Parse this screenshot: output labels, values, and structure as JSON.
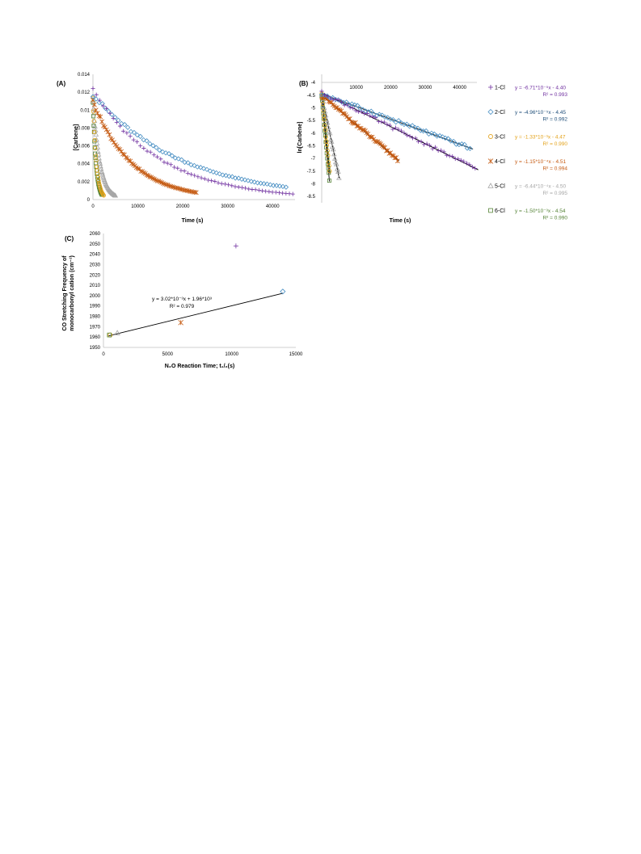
{
  "colors": {
    "1-Cl": "#7030a0",
    "2-Cl": "#4a90c4",
    "3-Cl": "#e3a21a",
    "4-Cl": "#c55a11",
    "5-Cl": "#a6a6a6",
    "6-Cl": "#548235",
    "fit": "#000000",
    "eq2": "#1f4e79"
  },
  "chart_data": [
    {
      "panel_label": "(A)",
      "type": "scatter",
      "xlabel": "Time (s)",
      "ylabel": "[Carbene]",
      "xlim": [
        0,
        45000
      ],
      "ylim": [
        0,
        0.014
      ],
      "x_ticks": [
        "0",
        "10000",
        "20000",
        "30000",
        "40000"
      ],
      "y_ticks": [
        "0",
        "0.002",
        "0.004",
        "0.006",
        "0.008",
        "0.01",
        "0.012",
        "0.014"
      ],
      "series": [
        {
          "name": "1-Cl",
          "marker": "plus",
          "a": 0.0123,
          "k": 6.71e-05,
          "xmax": 44500,
          "n": 60
        },
        {
          "name": "2-Cl",
          "marker": "diamond",
          "a": 0.0117,
          "k": 4.96e-05,
          "xmax": 43000,
          "n": 62
        },
        {
          "name": "3-Cl",
          "marker": "circle",
          "a": 0.0114,
          "k": 0.00133,
          "xmax": 2400,
          "n": 24
        },
        {
          "name": "4-Cl",
          "marker": "star",
          "a": 0.011,
          "k": 0.000115,
          "xmax": 23000,
          "n": 70
        },
        {
          "name": "5-Cl",
          "marker": "triangle",
          "a": 0.0111,
          "k": 0.000644,
          "xmax": 5000,
          "n": 45
        },
        {
          "name": "6-Cl",
          "marker": "square",
          "a": 0.0107,
          "k": 0.0015,
          "xmax": 2000,
          "n": 26
        }
      ]
    },
    {
      "panel_label": "(B)",
      "type": "scatter",
      "xlabel": "Time (s)",
      "ylabel": "ln[Carbene]",
      "xlim": [
        0,
        45000
      ],
      "ylim": [
        -8.5,
        -4
      ],
      "x_ticks": [
        "10000",
        "20000",
        "30000",
        "40000"
      ],
      "y_ticks": [
        "-4",
        "-4.5",
        "-5",
        "-5.5",
        "-6",
        "-6.5",
        "-7",
        "-7.5",
        "-8",
        "-8.5"
      ],
      "series": [
        {
          "name": "1-Cl",
          "marker": "plus",
          "slope": -6.71e-05,
          "intercept": -4.4,
          "xmax": 44500,
          "n": 55,
          "equation": "y = -6.71*10⁻⁵x - 4.40",
          "r2": "R² = 0.993"
        },
        {
          "name": "2-Cl",
          "marker": "diamond",
          "slope": -4.96e-05,
          "intercept": -4.45,
          "xmax": 43000,
          "n": 55,
          "equation": "y = -4.96*10⁻⁵x - 4.45",
          "r2": "R² = 0.992"
        },
        {
          "name": "3-Cl",
          "marker": "circle",
          "slope": -0.00133,
          "intercept": -4.47,
          "xmax": 2300,
          "n": 16,
          "equation": "y = -1.33*10⁻³x - 4.47",
          "r2": "R² = 0.990"
        },
        {
          "name": "4-Cl",
          "marker": "star",
          "slope": -0.000115,
          "intercept": -4.51,
          "xmax": 22000,
          "n": 55,
          "equation": "y = -1.15*10⁻⁴x - 4.51",
          "r2": "R² = 0.994"
        },
        {
          "name": "5-Cl",
          "marker": "triangle",
          "slope": -0.000644,
          "intercept": -4.5,
          "xmax": 5000,
          "n": 22,
          "equation": "y = -6.44*10⁻⁴x - 4.50",
          "r2": "R² = 0.995"
        },
        {
          "name": "6-Cl",
          "marker": "square",
          "slope": -0.0015,
          "intercept": -4.54,
          "xmax": 2200,
          "n": 16,
          "equation": "y = -1.50*10⁻³x - 4.54",
          "r2": "R² = 0.990"
        }
      ]
    },
    {
      "panel_label": "(C)",
      "type": "scatter",
      "xlabel": "N₂O Reaction Time; t₁/₂(s)",
      "ylabel_line1": "CO Stretching  Frequency of",
      "ylabel_line2": "monocarbonyl cation  (cm⁻¹)",
      "xlim": [
        0,
        15000
      ],
      "ylim": [
        1950,
        2060
      ],
      "x_ticks": [
        "0",
        "5000",
        "10000",
        "15000"
      ],
      "y_ticks": [
        "1950",
        "1960",
        "1970",
        "1980",
        "1990",
        "2000",
        "2010",
        "2020",
        "2030",
        "2040",
        "2050",
        "2060"
      ],
      "points": [
        {
          "name": "1-Cl",
          "marker": "plus",
          "x": 10330,
          "y": 2048
        },
        {
          "name": "2-Cl",
          "marker": "diamond",
          "x": 13980,
          "y": 2004
        },
        {
          "name": "3-Cl",
          "marker": "circle",
          "x": 520,
          "y": 1962
        },
        {
          "name": "4-Cl",
          "marker": "star",
          "x": 6030,
          "y": 1974
        },
        {
          "name": "5-Cl",
          "marker": "triangle",
          "x": 1080,
          "y": 1964
        },
        {
          "name": "6-Cl",
          "marker": "square",
          "x": 460,
          "y": 1962
        }
      ],
      "fit": {
        "x1": 400,
        "x2": 14000,
        "equation": "y = 3.02*10⁻³x + 1.96*10³",
        "r2": "R² = 0.979"
      }
    }
  ]
}
